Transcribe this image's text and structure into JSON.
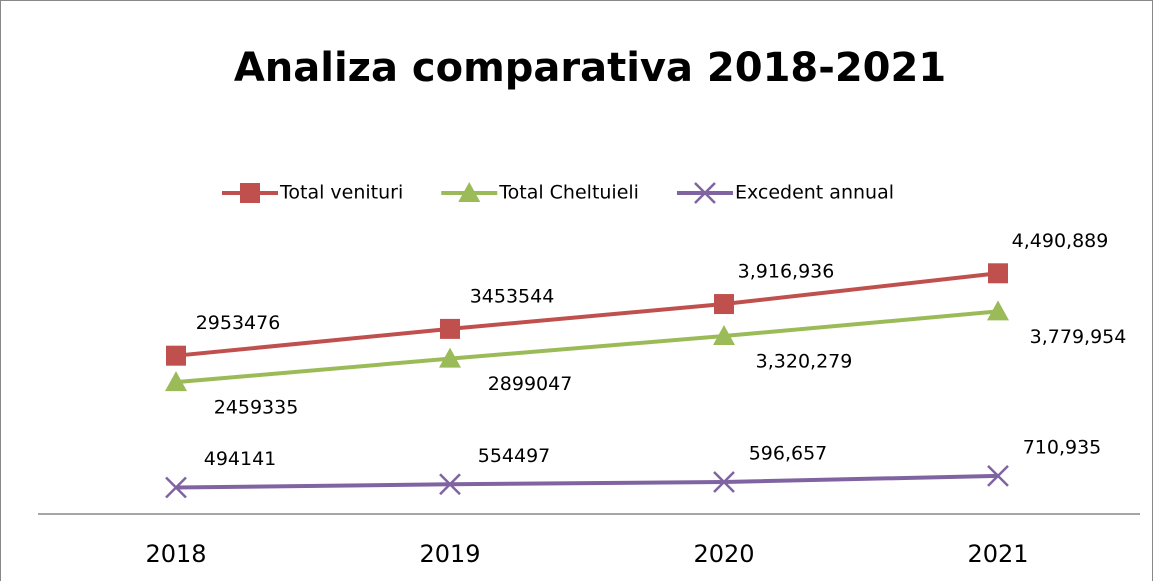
{
  "chart_data": {
    "type": "line",
    "title": "Analiza comparativa 2018-2021",
    "categories": [
      "2018",
      "2019",
      "2020",
      "2021"
    ],
    "ylim": [
      0,
      5000000
    ],
    "legend": "top",
    "series": [
      {
        "name": "Total venituri",
        "color": "#c0504d",
        "marker": "square",
        "values": [
          2953476,
          3453544,
          3916936,
          4490889
        ],
        "value_labels": [
          "2953476",
          "3453544",
          "3,916,936",
          "4,490,889"
        ]
      },
      {
        "name": "Total Cheltuieli",
        "color": "#9bbb59",
        "marker": "triangle",
        "values": [
          2459335,
          2899047,
          3320279,
          3779954
        ],
        "value_labels": [
          "2459335",
          "2899047",
          "3,320,279",
          "3,779,954"
        ]
      },
      {
        "name": "Excedent annual",
        "color": "#8064a2",
        "marker": "x",
        "values": [
          494141,
          554497,
          596657,
          710935
        ],
        "value_labels": [
          "494141",
          "554497",
          "596,657",
          "710,935"
        ]
      }
    ]
  }
}
